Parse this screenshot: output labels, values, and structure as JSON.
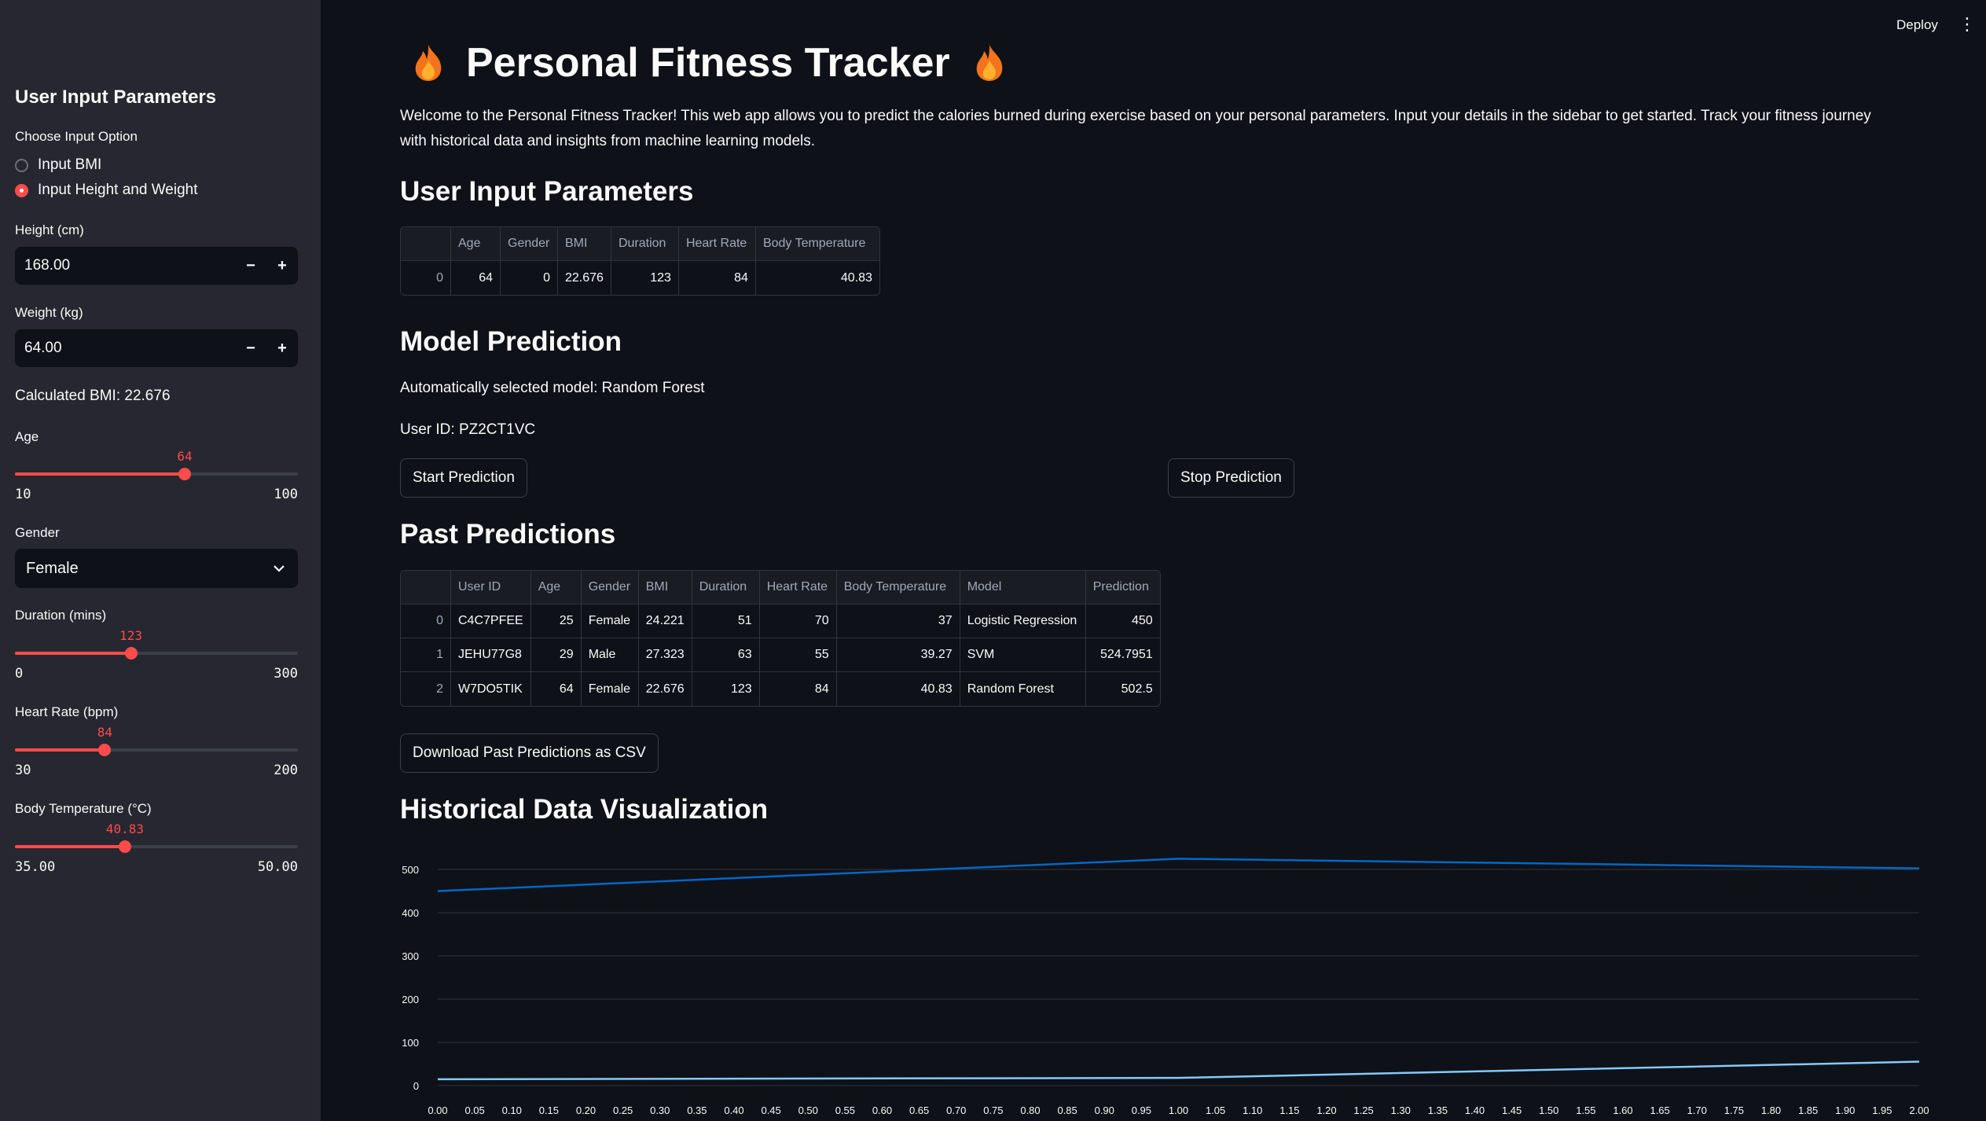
{
  "header": {
    "deploy_label": "Deploy"
  },
  "sidebar": {
    "title": "User Input Parameters",
    "option_label": "Choose Input Option",
    "options": [
      "Input BMI",
      "Input Height and Weight"
    ],
    "selected_option": 1,
    "height": {
      "label": "Height (cm)",
      "value": "168.00",
      "minus": "−",
      "plus": "+"
    },
    "weight": {
      "label": "Weight (kg)",
      "value": "64.00",
      "minus": "−",
      "plus": "+"
    },
    "bmi_text": "Calculated BMI: 22.676",
    "age": {
      "label": "Age",
      "value": 64,
      "value_text": "64",
      "min": 10,
      "max": 100,
      "min_text": "10",
      "max_text": "100"
    },
    "gender": {
      "label": "Gender",
      "selected": "Female"
    },
    "duration": {
      "label": "Duration (mins)",
      "value": 123,
      "value_text": "123",
      "min": 0,
      "max": 300,
      "min_text": "0",
      "max_text": "300"
    },
    "heart_rate": {
      "label": "Heart Rate (bpm)",
      "value": 84,
      "value_text": "84",
      "min": 30,
      "max": 200,
      "min_text": "30",
      "max_text": "200"
    },
    "body_temp": {
      "label": "Body Temperature (°C)",
      "value": 40.83,
      "value_text": "40.83",
      "min": 35,
      "max": 50,
      "min_text": "35.00",
      "max_text": "50.00"
    }
  },
  "main": {
    "title": "Personal Fitness Tracker",
    "intro": "Welcome to the Personal Fitness Tracker! This web app allows you to predict the calories burned during exercise based on your personal parameters. Input your details in the sidebar to get started. Track your fitness journey with historical data and insights from machine learning models.",
    "user_params": {
      "heading": "User Input Parameters",
      "columns": [
        "Age",
        "Gender",
        "BMI",
        "Duration",
        "Heart Rate",
        "Body Temperature"
      ],
      "rows": [
        [
          "0",
          "64",
          "0",
          "22.676",
          "123",
          "84",
          "40.83"
        ]
      ]
    },
    "model_prediction": {
      "heading": "Model Prediction",
      "selected_model_text": "Automatically selected model: Random Forest",
      "user_id_text": "User ID: PZ2CT1VC",
      "start_label": "Start Prediction",
      "stop_label": "Stop Prediction"
    },
    "past_predictions": {
      "heading": "Past Predictions",
      "columns": [
        "User ID",
        "Age",
        "Gender",
        "BMI",
        "Duration",
        "Heart Rate",
        "Body Temperature",
        "Model",
        "Prediction"
      ],
      "rows": [
        [
          "0",
          "C4C7PFEE",
          "25",
          "Female",
          "24.221",
          "51",
          "70",
          "37",
          "Logistic Regression",
          "450"
        ],
        [
          "1",
          "JEHU77G8",
          "29",
          "Male",
          "27.323",
          "63",
          "55",
          "39.27",
          "SVM",
          "524.7951"
        ],
        [
          "2",
          "W7DO5TIK",
          "64",
          "Female",
          "22.676",
          "123",
          "84",
          "40.83",
          "Random Forest",
          "502.5"
        ]
      ],
      "download_label": "Download Past Predictions as CSV"
    },
    "historical": {
      "heading": "Historical Data Visualization"
    }
  },
  "chart_data": {
    "type": "line",
    "x": [
      0,
      1,
      2
    ],
    "xlim": [
      0,
      2
    ],
    "ylim": [
      0,
      500
    ],
    "x_ticks": [
      "0.00",
      "0.05",
      "0.10",
      "0.15",
      "0.20",
      "0.25",
      "0.30",
      "0.35",
      "0.40",
      "0.45",
      "0.50",
      "0.55",
      "0.60",
      "0.65",
      "0.70",
      "0.75",
      "0.80",
      "0.85",
      "0.90",
      "0.95",
      "1.00",
      "1.05",
      "1.10",
      "1.15",
      "1.20",
      "1.25",
      "1.30",
      "1.35",
      "1.40",
      "1.45",
      "1.50",
      "1.55",
      "1.60",
      "1.65",
      "1.70",
      "1.75",
      "1.80",
      "1.85",
      "1.90",
      "1.95",
      "2.00"
    ],
    "y_ticks": [
      "0",
      "100",
      "200",
      "300",
      "400",
      "500"
    ],
    "grid": true,
    "series": [
      {
        "values": [
          450,
          524.7951,
          502.5
        ],
        "color": "#0068c9"
      },
      {
        "values": [
          14.8,
          17.9,
          55.4
        ],
        "color": "#83c9ff"
      }
    ]
  }
}
